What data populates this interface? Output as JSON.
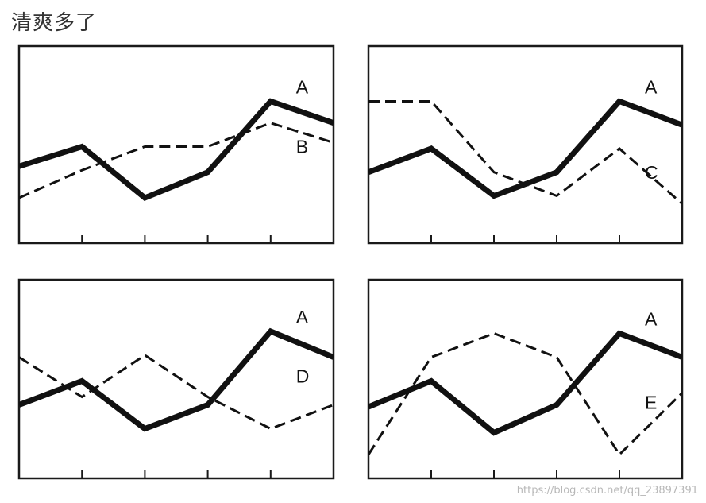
{
  "page": {
    "title": "清爽多了",
    "watermark": "https://blog.csdn.net/qq_23897391"
  },
  "chart_data": [
    {
      "type": "line",
      "x": [
        0,
        1,
        2,
        3,
        4,
        5
      ],
      "ylim": [
        0,
        100
      ],
      "grid": false,
      "series": [
        {
          "name": "A",
          "style": "solid",
          "values": [
            39,
            49,
            23,
            36,
            72,
            61
          ]
        },
        {
          "name": "B",
          "style": "dashed",
          "values": [
            23,
            37,
            49,
            49,
            61,
            51
          ]
        }
      ]
    },
    {
      "type": "line",
      "x": [
        0,
        1,
        2,
        3,
        4,
        5
      ],
      "ylim": [
        0,
        100
      ],
      "grid": false,
      "series": [
        {
          "name": "A",
          "style": "solid",
          "values": [
            36,
            48,
            24,
            36,
            72,
            60
          ]
        },
        {
          "name": "C",
          "style": "dashed",
          "values": [
            72,
            72,
            36,
            24,
            48,
            20
          ]
        }
      ]
    },
    {
      "type": "line",
      "x": [
        0,
        1,
        2,
        3,
        4,
        5
      ],
      "ylim": [
        0,
        100
      ],
      "grid": false,
      "series": [
        {
          "name": "A",
          "style": "solid",
          "values": [
            37,
            49,
            25,
            37,
            74,
            61
          ]
        },
        {
          "name": "D",
          "style": "dashed",
          "values": [
            61,
            41,
            62,
            41,
            25,
            37
          ]
        }
      ]
    },
    {
      "type": "line",
      "x": [
        0,
        1,
        2,
        3,
        4,
        5
      ],
      "ylim": [
        0,
        100
      ],
      "grid": false,
      "series": [
        {
          "name": "A",
          "style": "solid",
          "values": [
            36,
            49,
            23,
            37,
            73,
            61
          ]
        },
        {
          "name": "E",
          "style": "dashed",
          "values": [
            12,
            61,
            73,
            61,
            12,
            43
          ]
        }
      ]
    }
  ]
}
